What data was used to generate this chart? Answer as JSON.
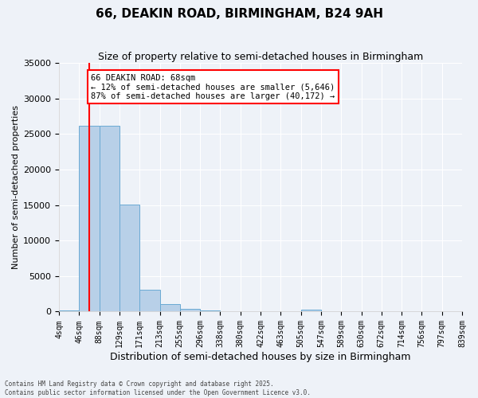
{
  "title": "66, DEAKIN ROAD, BIRMINGHAM, B24 9AH",
  "subtitle": "Size of property relative to semi-detached houses in Birmingham",
  "xlabel": "Distribution of semi-detached houses by size in Birmingham",
  "ylabel": "Number of semi-detached properties",
  "bar_counts": [
    200,
    26200,
    26200,
    15100,
    3100,
    1050,
    400,
    150,
    80,
    50,
    80,
    50,
    300,
    50,
    10,
    10,
    10,
    10,
    10,
    10
  ],
  "bar_color": "#b8d0e8",
  "bar_edgecolor": "#6aaad4",
  "property_bin": 1,
  "vline_x": 1.5,
  "vline_color": "red",
  "annotation_text": "66 DEAKIN ROAD: 68sqm\n← 12% of semi-detached houses are smaller (5,646)\n87% of semi-detached houses are larger (40,172) →",
  "annotation_box_color": "white",
  "annotation_box_edgecolor": "red",
  "ylim": [
    0,
    35000
  ],
  "yticks": [
    0,
    5000,
    10000,
    15000,
    20000,
    25000,
    30000,
    35000
  ],
  "background_color": "#eef2f8",
  "footer_line1": "Contains HM Land Registry data © Crown copyright and database right 2025.",
  "footer_line2": "Contains public sector information licensed under the Open Government Licence v3.0.",
  "tick_labels": [
    "4sqm",
    "46sqm",
    "88sqm",
    "129sqm",
    "171sqm",
    "213sqm",
    "255sqm",
    "296sqm",
    "338sqm",
    "380sqm",
    "422sqm",
    "463sqm",
    "505sqm",
    "547sqm",
    "589sqm",
    "630sqm",
    "672sqm",
    "714sqm",
    "756sqm",
    "797sqm",
    "839sqm"
  ],
  "num_bars": 20,
  "title_fontsize": 11,
  "subtitle_fontsize": 9,
  "xlabel_fontsize": 9,
  "ylabel_fontsize": 8
}
